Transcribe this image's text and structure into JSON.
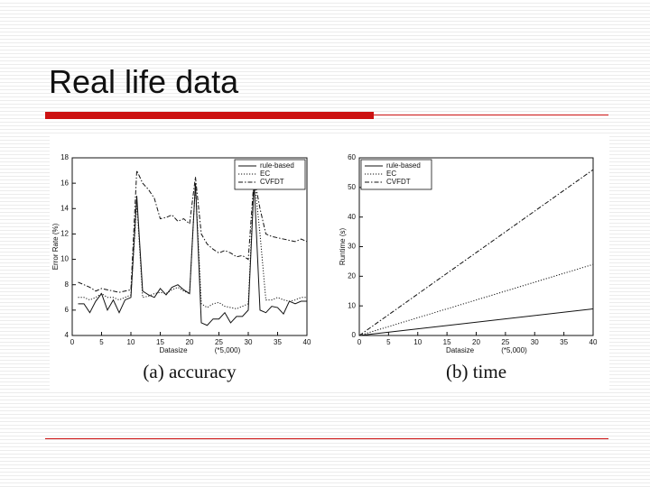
{
  "slide": {
    "title": "Real life data"
  },
  "chart_data": [
    {
      "type": "line",
      "caption": "(a) accuracy",
      "xlabel": "Datasize",
      "x_note": "(*5,000)",
      "ylabel": "Error Rate (%)",
      "x": [
        1,
        2,
        3,
        4,
        5,
        6,
        7,
        8,
        9,
        10,
        11,
        12,
        13,
        14,
        15,
        16,
        17,
        18,
        19,
        20,
        21,
        22,
        23,
        24,
        25,
        26,
        27,
        28,
        29,
        30,
        31,
        32,
        33,
        34,
        35,
        36,
        37,
        38,
        39,
        40
      ],
      "xlim": [
        0,
        40
      ],
      "xticks": [
        0,
        5,
        10,
        15,
        20,
        25,
        30,
        35,
        40
      ],
      "ylim": [
        4,
        18
      ],
      "yticks": [
        4,
        6,
        8,
        10,
        12,
        14,
        16,
        18
      ],
      "legend": "upper right",
      "series": [
        {
          "name": "rule-based",
          "color": "#111111",
          "dash": "solid",
          "values": [
            6.5,
            6.5,
            5.8,
            6.7,
            7.3,
            6,
            6.8,
            5.8,
            6.8,
            7,
            15,
            7.5,
            7.2,
            7,
            7.7,
            7.2,
            7.8,
            8,
            7.6,
            7.3,
            16,
            5,
            4.8,
            5.3,
            5.3,
            5.8,
            5,
            5.5,
            5.5,
            6,
            16,
            6,
            5.8,
            6.3,
            6.2,
            5.7,
            6.7,
            6.5,
            6.7,
            6.7
          ]
        },
        {
          "name": "EC",
          "color": "#111111",
          "dash": "dotted",
          "values": [
            7,
            7,
            6.8,
            7,
            7.3,
            7,
            7,
            6.8,
            7,
            7.2,
            14.5,
            7,
            7.1,
            7.3,
            7.4,
            7.3,
            7.6,
            7.8,
            7.5,
            7.3,
            16,
            6.5,
            6.2,
            6.5,
            6.6,
            6.3,
            6.2,
            6.1,
            6.3,
            6.5,
            16.5,
            12,
            6.8,
            6.8,
            7,
            6.8,
            6.7,
            6.8,
            7,
            7
          ]
        },
        {
          "name": "CVFDT",
          "color": "#111111",
          "dash": "dashdot",
          "values": [
            8.2,
            8,
            7.8,
            7.5,
            7.7,
            7.6,
            7.5,
            7.4,
            7.5,
            7.6,
            17,
            16,
            15.5,
            14.8,
            13.2,
            13.3,
            13.5,
            13,
            13.2,
            12.8,
            16.5,
            12,
            11.2,
            10.8,
            10.5,
            10.7,
            10.5,
            10.2,
            10.3,
            10,
            16.5,
            14,
            12,
            11.8,
            11.7,
            11.6,
            11.5,
            11.4,
            11.6,
            11.4
          ]
        }
      ]
    },
    {
      "type": "line",
      "caption": "(b) time",
      "xlabel": "Datasize",
      "x_note": "(*5,000)",
      "ylabel": "Runtime (s)",
      "x": [
        0,
        40
      ],
      "xlim": [
        0,
        40
      ],
      "xticks": [
        0,
        5,
        10,
        15,
        20,
        25,
        30,
        35,
        40
      ],
      "ylim": [
        0,
        60
      ],
      "yticks": [
        0,
        10,
        20,
        30,
        40,
        50,
        60
      ],
      "legend": "upper left",
      "series": [
        {
          "name": "rule-based",
          "color": "#111111",
          "dash": "solid",
          "values": [
            0,
            9
          ]
        },
        {
          "name": "EC",
          "color": "#111111",
          "dash": "dotted",
          "values": [
            0,
            24
          ]
        },
        {
          "name": "CVFDT",
          "color": "#111111",
          "dash": "dashdot",
          "values": [
            0,
            56
          ]
        }
      ]
    }
  ]
}
